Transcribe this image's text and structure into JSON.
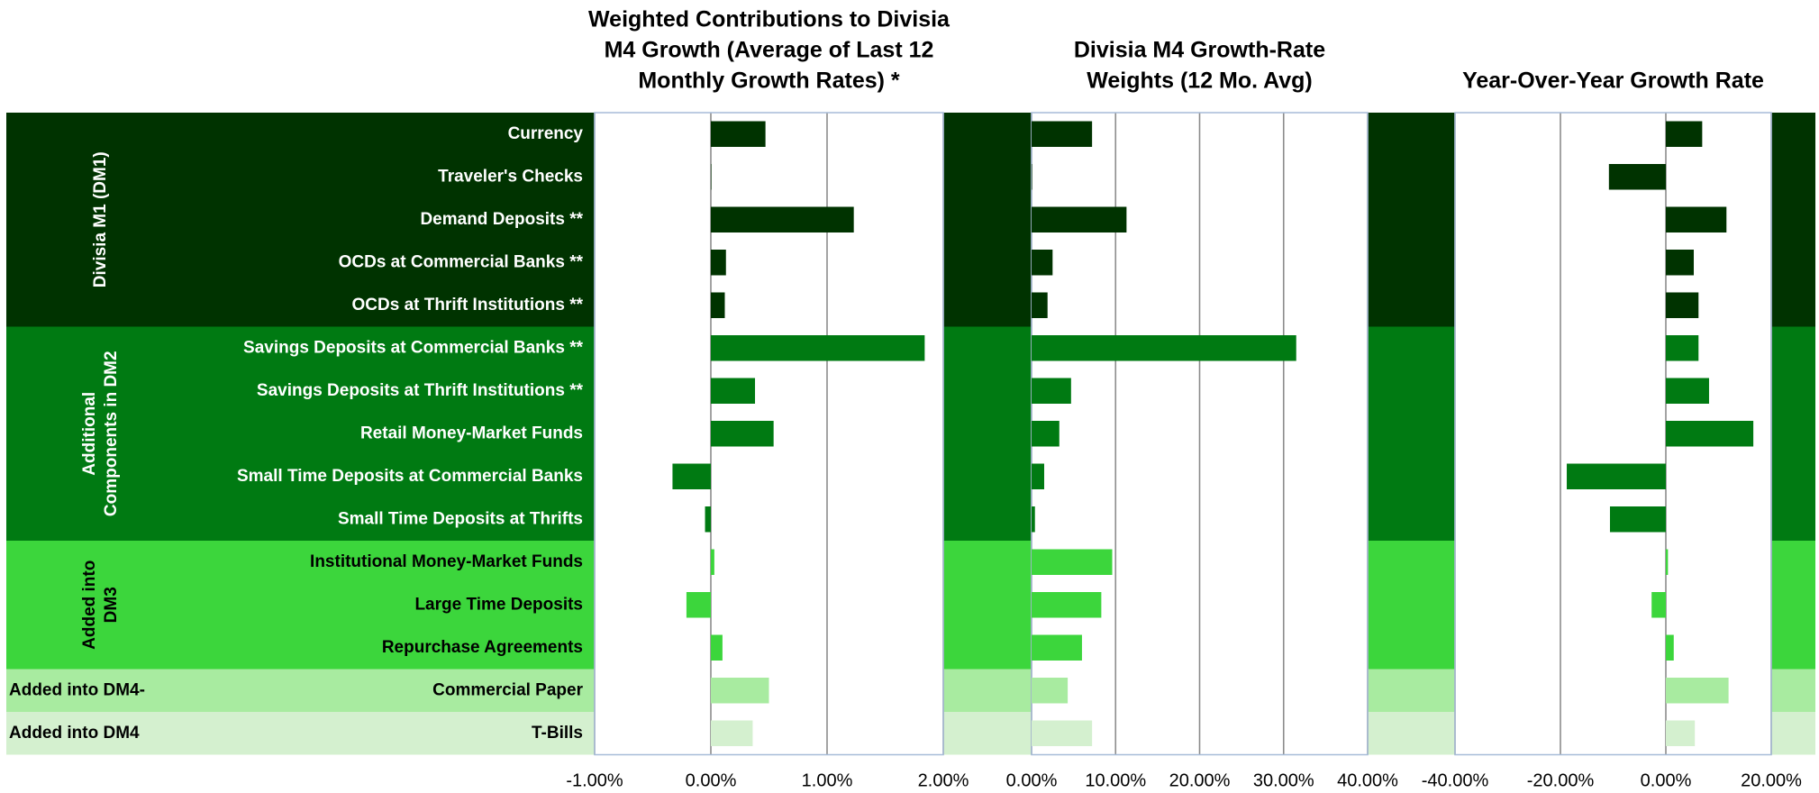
{
  "chart_data": [
    {
      "type": "bar",
      "orientation": "horizontal",
      "title": [
        "Weighted Contributions to Divisia",
        "M4 Growth (Average of Last 12",
        "Monthly Growth Rates) *"
      ],
      "groups": [
        {
          "label": [
            "Divisia M1 (DM1)"
          ],
          "color": "#003300",
          "text_color": "#ffffff",
          "categories": [
            "Currency",
            "Traveler's Checks",
            "Demand Deposits **",
            "OCDs at Commercial Banks **",
            "OCDs at Thrift Institutions **"
          ]
        },
        {
          "label": [
            "Additional",
            "Components in DM2"
          ],
          "color": "#007a12",
          "text_color": "#ffffff",
          "categories": [
            "Savings Deposits at Commercial Banks **",
            "Savings Deposits at Thrift Institutions **",
            "Retail Money-Market Funds",
            "Small Time Deposits at Commercial Banks",
            "Small Time Deposits at Thrifts"
          ]
        },
        {
          "label": [
            "Added into",
            "DM3"
          ],
          "color": "#3cd63c",
          "text_color": "#000000",
          "categories": [
            "Institutional Money-Market Funds",
            "Large Time Deposits",
            "Repurchase Agreements"
          ]
        },
        {
          "label": [
            "Added into DM4-"
          ],
          "color": "#a8eba0",
          "text_color": "#000000",
          "categories": [
            "Commercial Paper"
          ]
        },
        {
          "label": [
            "Added into DM4"
          ],
          "color": "#d4f0cf",
          "text_color": "#000000",
          "categories": [
            "T-Bills"
          ]
        }
      ],
      "series": [
        {
          "color": "#003300",
          "values": [
            0.47,
            0.0,
            1.23,
            0.13,
            0.12
          ]
        },
        {
          "color": "#007a12",
          "values": [
            1.84,
            0.38,
            0.54,
            -0.33,
            -0.05
          ]
        },
        {
          "color": "#3cd63c",
          "values": [
            0.03,
            -0.21,
            0.1
          ]
        },
        {
          "color": "#a8eba0",
          "values": [
            0.5
          ]
        },
        {
          "color": "#d4f0cf",
          "values": [
            0.36
          ]
        }
      ],
      "xlim": [
        -1,
        2
      ],
      "xticks": [
        {
          "value": -1,
          "label": "-1.00%"
        },
        {
          "value": 0,
          "label": "0.00%"
        },
        {
          "value": 1,
          "label": "1.00%"
        },
        {
          "value": 2,
          "label": "2.00%"
        }
      ],
      "grid": true
    },
    {
      "type": "bar",
      "orientation": "horizontal",
      "title": [
        "Divisia M4 Growth-Rate",
        "Weights (12 Mo. Avg)"
      ],
      "series": [
        {
          "color": "#003300",
          "values": [
            7.2,
            0.0,
            11.3,
            2.5,
            1.9
          ]
        },
        {
          "color": "#007a12",
          "values": [
            31.5,
            4.7,
            3.3,
            1.5,
            0.4
          ]
        },
        {
          "color": "#3cd63c",
          "values": [
            9.6,
            8.3,
            6.0
          ]
        },
        {
          "color": "#a8eba0",
          "values": [
            4.3
          ]
        },
        {
          "color": "#d4f0cf",
          "values": [
            7.2
          ]
        }
      ],
      "xlim": [
        0,
        40
      ],
      "xticks": [
        {
          "value": 0,
          "label": "0.00%"
        },
        {
          "value": 10,
          "label": "10.00%"
        },
        {
          "value": 20,
          "label": "20.00%"
        },
        {
          "value": 30,
          "label": "30.00%"
        },
        {
          "value": 40,
          "label": "40.00%"
        }
      ],
      "grid": true
    },
    {
      "type": "bar",
      "orientation": "horizontal",
      "title": [
        "Year-Over-Year Growth Rate"
      ],
      "series": [
        {
          "color": "#003300",
          "values": [
            6.9,
            -10.8,
            11.5,
            5.3,
            6.2
          ]
        },
        {
          "color": "#007a12",
          "values": [
            6.2,
            8.2,
            16.6,
            -18.8,
            -10.6
          ]
        },
        {
          "color": "#3cd63c",
          "values": [
            0.4,
            -2.7,
            1.5
          ]
        },
        {
          "color": "#a8eba0",
          "values": [
            11.9
          ]
        },
        {
          "color": "#d4f0cf",
          "values": [
            5.5
          ]
        }
      ],
      "xlim": [
        -40,
        20
      ],
      "xticks": [
        {
          "value": -40,
          "label": "-40.00%"
        },
        {
          "value": -20,
          "label": "-20.00%"
        },
        {
          "value": 0,
          "label": "0.00%"
        },
        {
          "value": 20,
          "label": "20.00%"
        }
      ],
      "grid": true
    }
  ]
}
